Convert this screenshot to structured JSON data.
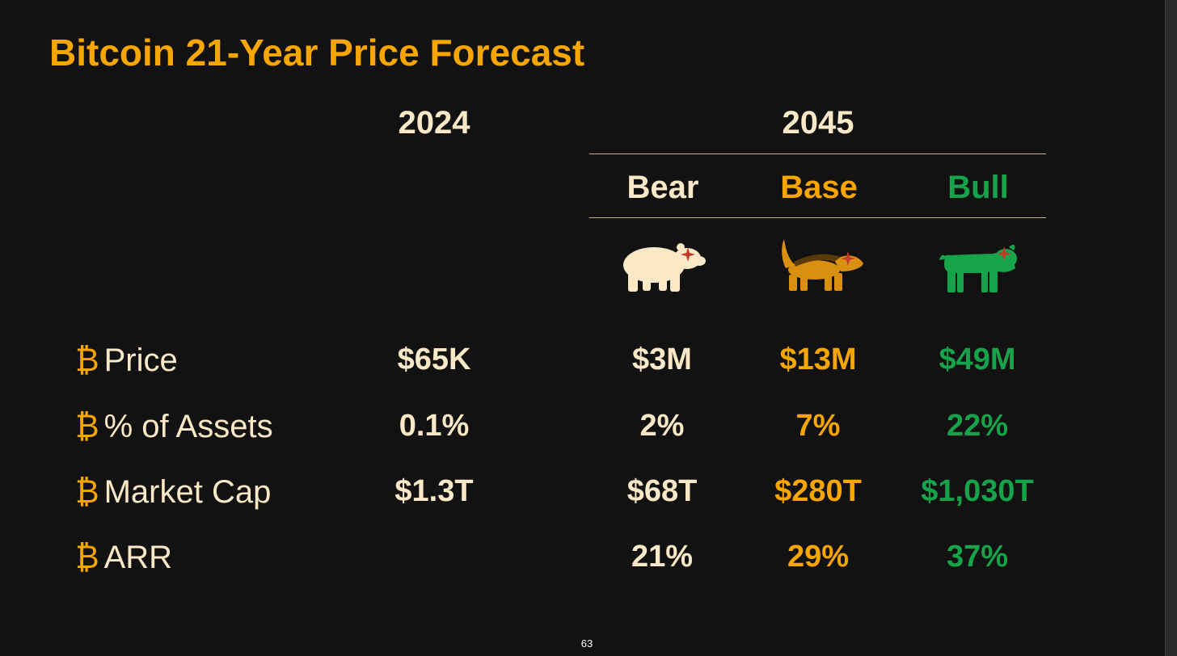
{
  "slide": {
    "title": "Bitcoin 21-Year Price Forecast",
    "page_number": "63",
    "colors": {
      "background": "#121212",
      "accent": "#f7a600",
      "text": "#fbe8c7",
      "bull": "#16a349"
    }
  },
  "table": {
    "year_now": "2024",
    "year_future": "2045",
    "scenarios": [
      {
        "label": "Bear",
        "icon": "bear-icon",
        "color": "#fbe8c7"
      },
      {
        "label": "Base",
        "icon": "honey-badger-icon",
        "color": "#f7a600"
      },
      {
        "label": "Bull",
        "icon": "bull-icon",
        "color": "#16a349"
      }
    ],
    "bullet_symbol": "₿",
    "rows": [
      {
        "label": "Price",
        "y2024": "$65K",
        "bear": "$3M",
        "base": "$13M",
        "bull": "$49M"
      },
      {
        "label": "% of Assets",
        "y2024": "0.1%",
        "bear": "2%",
        "base": "7%",
        "bull": "22%"
      },
      {
        "label": "Market Cap",
        "y2024": "$1.3T",
        "bear": "$68T",
        "base": "$280T",
        "bull": "$1,030T"
      },
      {
        "label": "ARR",
        "y2024": "",
        "bear": "21%",
        "base": "29%",
        "bull": "37%"
      }
    ]
  }
}
